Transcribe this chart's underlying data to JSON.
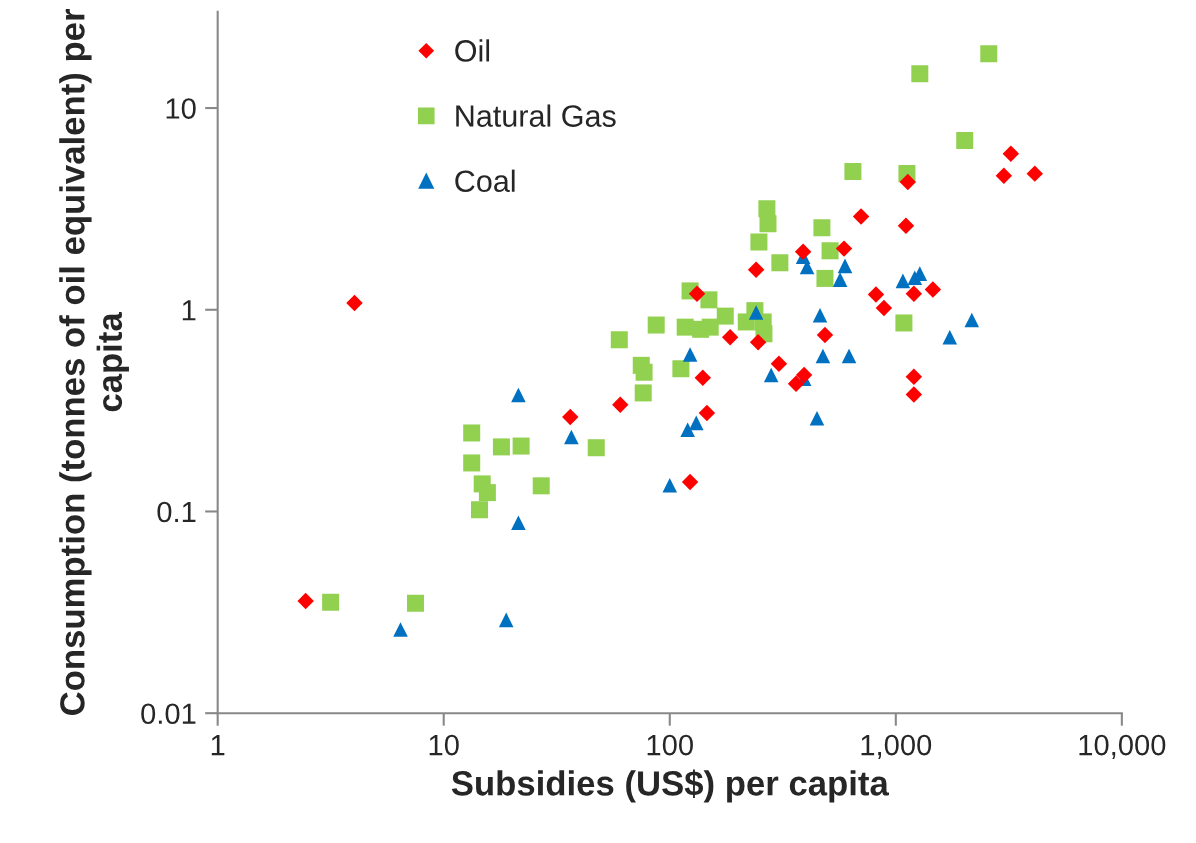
{
  "chart_data": {
    "type": "scatter",
    "xlabel": "Subsidies (US$) per capita",
    "ylabel": "Consumption (tonnes of oil equivalent) per capita",
    "log": "xy",
    "xlim": [
      1,
      10000
    ],
    "ylim": [
      0.01,
      30
    ],
    "xticks": [
      1,
      10,
      100,
      {
        "value": 1000,
        "label": "1,000"
      },
      {
        "value": 10000,
        "label": "10,000"
      }
    ],
    "yticks": [
      0.01,
      0.1,
      1,
      10
    ],
    "grid": false,
    "legend": "top left",
    "series": [
      {
        "name": "Oil",
        "color": "#ff0000",
        "marker": "diamond",
        "x": [
          2.45,
          4.03,
          36.3,
          60.4,
          123,
          140,
          146,
          132,
          185,
          241,
          246,
          304,
          362,
          393,
          389,
          486,
          590,
          702,
          817,
          886,
          1109,
          1130,
          1202,
          1202,
          1202,
          1459,
          3006,
          3228,
          4120
        ],
        "values": [
          0.036,
          1.08,
          0.294,
          0.338,
          0.14,
          0.46,
          0.308,
          1.2,
          0.73,
          1.58,
          0.69,
          0.54,
          0.43,
          0.475,
          1.94,
          0.75,
          2.01,
          2.9,
          1.19,
          1.02,
          2.61,
          4.3,
          0.465,
          0.38,
          1.2,
          1.26,
          4.62,
          5.94,
          4.73
        ]
      },
      {
        "name": "Natural Gas",
        "color": "#92d050",
        "marker": "square",
        "x": [
          3.16,
          7.5,
          13.3,
          13.3,
          14.8,
          15.6,
          14.4,
          18.0,
          22.0,
          27.0,
          47.3,
          59.8,
          74.8,
          77,
          76.3,
          87.1,
          112,
          117,
          123,
          137,
          151,
          149,
          176,
          218,
          238,
          259,
          261,
          248,
          269,
          272,
          307,
          471,
          512,
          486,
          646,
          1120,
          1086,
          2018,
          1277,
          2578
        ],
        "values": [
          0.0355,
          0.0351,
          0.245,
          0.174,
          0.137,
          0.124,
          0.102,
          0.209,
          0.211,
          0.134,
          0.207,
          0.71,
          0.53,
          0.49,
          0.387,
          0.84,
          0.51,
          0.82,
          1.24,
          0.8,
          0.82,
          1.12,
          0.93,
          0.87,
          0.99,
          0.87,
          0.76,
          2.17,
          3.17,
          2.67,
          1.71,
          2.55,
          1.96,
          1.43,
          4.84,
          4.73,
          0.86,
          6.9,
          14.8,
          18.6
        ]
      },
      {
        "name": "Coal",
        "color": "#0070c0",
        "marker": "triangle",
        "x": [
          6.44,
          18.9,
          21.4,
          21.4,
          36.7,
          100,
          120,
          131,
          123,
          241,
          281,
          389,
          405,
          393,
          448,
          462,
          476,
          567,
          596,
          621,
          1075,
          1213,
          1277,
          2169,
          1733
        ],
        "values": [
          0.026,
          0.029,
          0.088,
          0.378,
          0.234,
          0.135,
          0.254,
          0.275,
          0.6,
          0.97,
          0.475,
          1.83,
          1.63,
          0.455,
          0.29,
          0.94,
          0.59,
          1.41,
          1.65,
          0.59,
          1.39,
          1.44,
          1.51,
          0.89,
          0.73
        ]
      }
    ]
  }
}
